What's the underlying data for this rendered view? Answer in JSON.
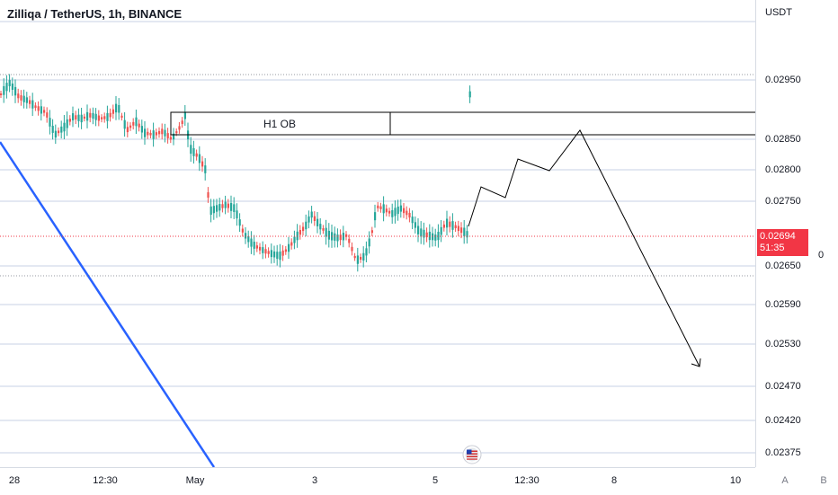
{
  "chart": {
    "title": "Zilliqa / TetherUS, 1h, BINANCE",
    "currency": "USDT",
    "price_ticks": [
      "0.02950",
      "0.02850",
      "0.02800",
      "0.02750",
      "0.02650",
      "0.02590",
      "0.02530",
      "0.02470",
      "0.02420",
      "0.02375"
    ],
    "current_price": "0.02694",
    "countdown": "51:35",
    "time_labels": [
      "28",
      "12:30",
      "May",
      "3",
      "5",
      "12:30",
      "8",
      "10"
    ],
    "ob_label": "H1 OB",
    "right_value": "0",
    "axis_buttons": [
      "A",
      "B"
    ]
  },
  "colors": {
    "up": "#26a69a",
    "down": "#ef5350",
    "trendline": "#2962ff",
    "price_line": "#f23645",
    "grid": "#d1d4dc"
  },
  "icons": {
    "economic_event": "us-flag-icon"
  }
}
